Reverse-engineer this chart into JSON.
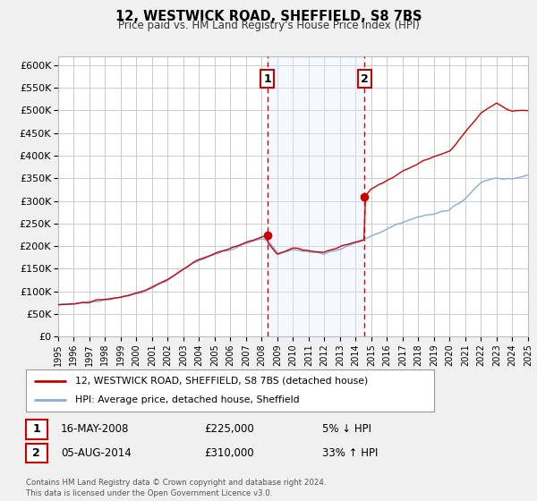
{
  "title": "12, WESTWICK ROAD, SHEFFIELD, S8 7BS",
  "subtitle": "Price paid vs. HM Land Registry's House Price Index (HPI)",
  "legend_label_red": "12, WESTWICK ROAD, SHEFFIELD, S8 7BS (detached house)",
  "legend_label_blue": "HPI: Average price, detached house, Sheffield",
  "sale1_date": "16-MAY-2008",
  "sale1_price": "£225,000",
  "sale1_pct": "5% ↓ HPI",
  "sale1_year": 2008.37,
  "sale1_value": 225000,
  "sale2_date": "05-AUG-2014",
  "sale2_price": "£310,000",
  "sale2_pct": "33% ↑ HPI",
  "sale2_year": 2014.58,
  "sale2_value": 310000,
  "xlim": [
    1995,
    2025
  ],
  "ylim": [
    0,
    620000
  ],
  "yticks": [
    0,
    50000,
    100000,
    150000,
    200000,
    250000,
    300000,
    350000,
    400000,
    450000,
    500000,
    550000,
    600000
  ],
  "ytick_labels": [
    "£0",
    "£50K",
    "£100K",
    "£150K",
    "£200K",
    "£250K",
    "£300K",
    "£350K",
    "£400K",
    "£450K",
    "£500K",
    "£550K",
    "£600K"
  ],
  "xticks": [
    1995,
    1996,
    1997,
    1998,
    1999,
    2000,
    2001,
    2002,
    2003,
    2004,
    2005,
    2006,
    2007,
    2008,
    2009,
    2010,
    2011,
    2012,
    2013,
    2014,
    2015,
    2016,
    2017,
    2018,
    2019,
    2020,
    2021,
    2022,
    2023,
    2024,
    2025
  ],
  "bg_color": "#f0f0f0",
  "plot_bg_color": "#ffffff",
  "grid_color": "#cccccc",
  "red_color": "#cc0000",
  "blue_color": "#88aadd",
  "shade_color": "#ddeeff",
  "footnote": "Contains HM Land Registry data © Crown copyright and database right 2024.\nThis data is licensed under the Open Government Licence v3.0."
}
